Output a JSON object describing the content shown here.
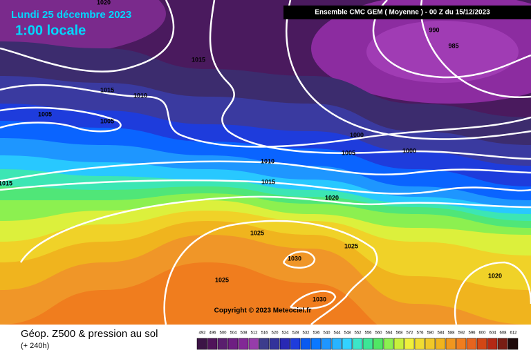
{
  "header": {
    "date": "Lundi 25 décembre 2023",
    "time": "1:00 locale",
    "model": "Ensemble CMC GEM  ( Moyenne )  -  00 Z du 15/12/2023"
  },
  "footer": {
    "title": "Géop. Z500 & pression au sol",
    "lead": "(+ 240h)",
    "copyright": "Copyright © 2023 Meteociel.fr"
  },
  "isobars": [
    1020,
    1015,
    1015,
    1010,
    1005,
    1005,
    1015,
    990,
    985,
    1000,
    1005,
    1000,
    1010,
    1015,
    1020,
    1025,
    1025,
    1030,
    1025,
    1030,
    1020
  ],
  "colorbar": {
    "values": [
      492,
      496,
      500,
      504,
      508,
      512,
      516,
      520,
      524,
      528,
      532,
      536,
      540,
      544,
      548,
      552,
      556,
      560,
      564,
      568,
      572,
      576,
      580,
      584,
      588,
      592,
      596,
      600,
      604,
      608,
      612
    ],
    "colors": [
      "#3c1446",
      "#50145a",
      "#5a1e6e",
      "#6e1e82",
      "#822896",
      "#963caa",
      "#3c3c8c",
      "#32329b",
      "#2828b4",
      "#1e3cdc",
      "#0a5af0",
      "#0a78ff",
      "#1e96ff",
      "#28b4ff",
      "#32d2ff",
      "#3ce6c8",
      "#3ce696",
      "#50e664",
      "#8cf050",
      "#c8f03c",
      "#f0f03c",
      "#f0dc32",
      "#f0c828",
      "#f0b41e",
      "#f0961e",
      "#f07d1e",
      "#e6641e",
      "#d24614",
      "#b42814",
      "#781e14",
      "#1e0a0a"
    ]
  }
}
